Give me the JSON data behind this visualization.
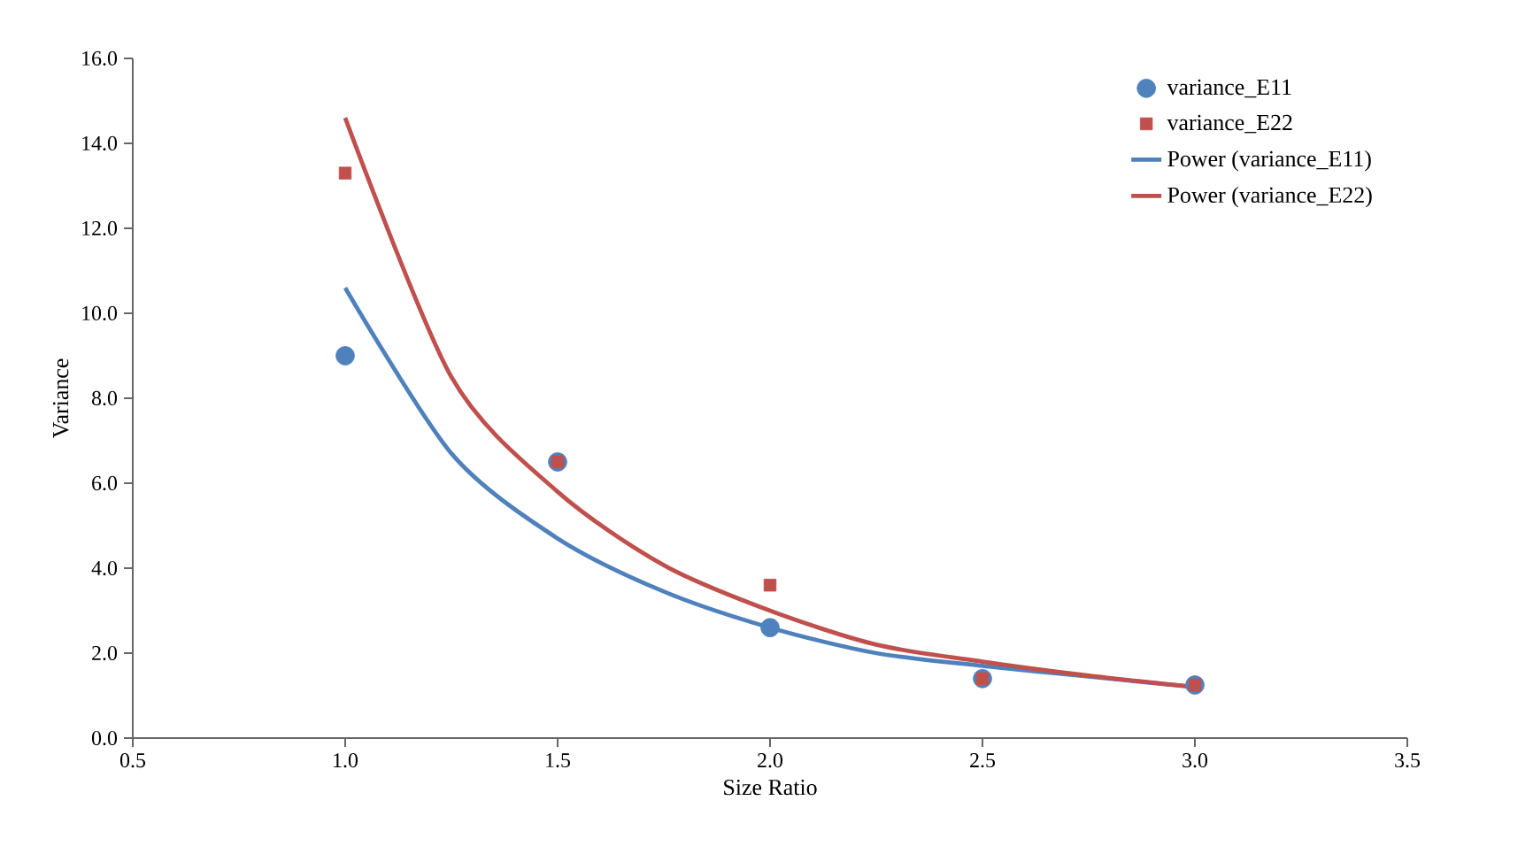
{
  "chart_data": {
    "type": "scatter",
    "xlabel": "Size Ratio",
    "ylabel": "Variance",
    "xlim": [
      0.5,
      3.5
    ],
    "xticks": [
      {
        "value": 0.5,
        "label": "0.5"
      },
      {
        "value": 1.0,
        "label": "1.0"
      },
      {
        "value": 1.5,
        "label": "1.5"
      },
      {
        "value": 2.0,
        "label": "2.0"
      },
      {
        "value": 2.5,
        "label": "2.5"
      },
      {
        "value": 3.0,
        "label": "3.0"
      },
      {
        "value": 3.5,
        "label": "3.5"
      }
    ],
    "ylim": [
      0,
      16
    ],
    "yticks": [
      {
        "value": 0,
        "label": "0.0"
      },
      {
        "value": 2,
        "label": "2.0"
      },
      {
        "value": 4,
        "label": "4.0"
      },
      {
        "value": 6,
        "label": "6.0"
      },
      {
        "value": 8,
        "label": "8.0"
      },
      {
        "value": 10,
        "label": "10.0"
      },
      {
        "value": 12,
        "label": "12.0"
      },
      {
        "value": 14,
        "label": "14.0"
      },
      {
        "value": 16,
        "label": "16.0"
      }
    ],
    "grid": false,
    "legend": "top right",
    "series": [
      {
        "name": "variance_E11",
        "marker": "circle",
        "color": "#4f81bd",
        "x": [
          1.0,
          1.5,
          2.0,
          2.5,
          3.0
        ],
        "values": [
          9.0,
          6.5,
          2.6,
          1.4,
          1.25
        ]
      },
      {
        "name": "variance_E22",
        "marker": "square",
        "color": "#c0504d",
        "x": [
          1.0,
          1.5,
          2.0,
          2.5,
          3.0
        ],
        "values": [
          13.3,
          6.5,
          3.6,
          1.4,
          1.25
        ]
      },
      {
        "name": "Power (variance_E11)",
        "type": "line",
        "line_style": "solid",
        "color": "#4f81bd",
        "x": [
          1.0,
          1.25,
          1.5,
          1.75,
          2.0,
          2.25,
          2.5,
          2.75,
          3.0
        ],
        "values": [
          10.6,
          6.7,
          4.7,
          3.45,
          2.6,
          2.0,
          1.7,
          1.45,
          1.2
        ]
      },
      {
        "name": "Power (variance_E22)",
        "type": "line",
        "line_style": "solid",
        "color": "#c0504d",
        "x": [
          1.0,
          1.25,
          1.5,
          1.75,
          2.0,
          2.25,
          2.5,
          2.75,
          3.0
        ],
        "values": [
          14.6,
          8.5,
          5.8,
          4.07,
          3.0,
          2.2,
          1.8,
          1.47,
          1.2
        ]
      }
    ]
  }
}
